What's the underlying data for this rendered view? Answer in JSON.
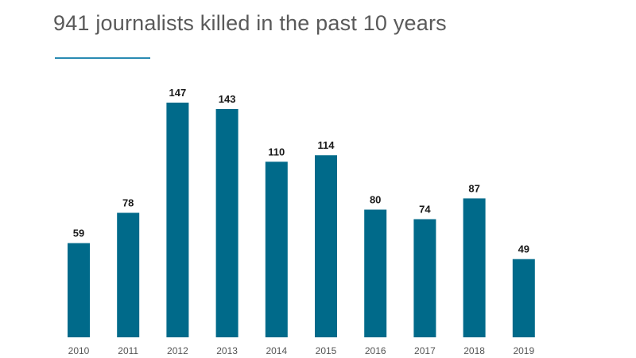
{
  "title": "941 journalists killed in the past 10 years",
  "colors": {
    "bar": "#006a8a",
    "accent": "#2a8bb3",
    "title": "#5a5a5a"
  },
  "chart_data": {
    "type": "bar",
    "title": "941 journalists killed in the past 10 years",
    "xlabel": "",
    "ylabel": "",
    "categories": [
      "2010",
      "2011",
      "2012",
      "2013",
      "2014",
      "2015",
      "2016",
      "2017",
      "2018",
      "2019"
    ],
    "values": [
      59,
      78,
      147,
      143,
      110,
      114,
      80,
      74,
      87,
      49
    ],
    "ylim": [
      0,
      147
    ],
    "grid": false,
    "legend": "none",
    "data_labels": true
  }
}
